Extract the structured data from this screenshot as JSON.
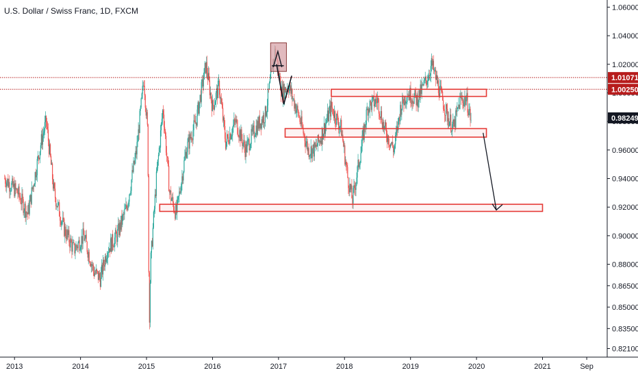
{
  "chart_data": {
    "type": "candlestick",
    "title": "U.S. Dollar / Swiss Franc, 1D, FXCM",
    "y_ticks": [
      0.821,
      0.835,
      0.85,
      0.865,
      0.88,
      0.9,
      0.92,
      0.94,
      0.96,
      0.98,
      1.0,
      1.02,
      1.04,
      1.06
    ],
    "y_tick_labels": [
      "0.82100",
      "0.83500",
      "0.85000",
      "0.86500",
      "0.88000",
      "0.90000",
      "0.92000",
      "0.94000",
      "0.96000",
      "0.98000",
      "1.00000",
      "1.02000",
      "1.04000",
      "1.06000"
    ],
    "x_ticks": [
      2013,
      2014,
      2015,
      2016,
      2017,
      2018,
      2019,
      2020,
      2021,
      2021.67
    ],
    "x_tick_labels": [
      "2013",
      "2014",
      "2015",
      "2016",
      "2017",
      "2018",
      "2019",
      "2020",
      "2021",
      "Sep"
    ],
    "price_path": [
      [
        2012.85,
        0.94
      ],
      [
        2013.05,
        0.93
      ],
      [
        2013.2,
        0.915
      ],
      [
        2013.4,
        0.965
      ],
      [
        2013.48,
        0.98
      ],
      [
        2013.6,
        0.93
      ],
      [
        2013.75,
        0.905
      ],
      [
        2013.9,
        0.89
      ],
      [
        2014.05,
        0.9
      ],
      [
        2014.2,
        0.875
      ],
      [
        2014.3,
        0.87
      ],
      [
        2014.4,
        0.89
      ],
      [
        2014.55,
        0.9
      ],
      [
        2014.7,
        0.92
      ],
      [
        2014.85,
        0.96
      ],
      [
        2014.96,
        1.01
      ],
      [
        2015.02,
        0.97
      ],
      [
        2015.04,
        0.835
      ],
      [
        2015.06,
        0.88
      ],
      [
        2015.15,
        0.94
      ],
      [
        2015.25,
        0.99
      ],
      [
        2015.35,
        0.93
      ],
      [
        2015.45,
        0.915
      ],
      [
        2015.6,
        0.96
      ],
      [
        2015.75,
        0.98
      ],
      [
        2015.9,
        1.02
      ],
      [
        2016.0,
        0.99
      ],
      [
        2016.1,
        1.005
      ],
      [
        2016.2,
        0.965
      ],
      [
        2016.35,
        0.98
      ],
      [
        2016.5,
        0.96
      ],
      [
        2016.65,
        0.975
      ],
      [
        2016.8,
        0.985
      ],
      [
        2016.95,
        1.03
      ],
      [
        2017.05,
        1.0
      ],
      [
        2017.15,
        1.005
      ],
      [
        2017.3,
        0.985
      ],
      [
        2017.45,
        0.96
      ],
      [
        2017.55,
        0.96
      ],
      [
        2017.65,
        0.97
      ],
      [
        2017.8,
        0.99
      ],
      [
        2017.95,
        0.975
      ],
      [
        2018.05,
        0.94
      ],
      [
        2018.12,
        0.925
      ],
      [
        2018.25,
        0.96
      ],
      [
        2018.35,
        0.99
      ],
      [
        2018.5,
        0.995
      ],
      [
        2018.6,
        0.975
      ],
      [
        2018.75,
        0.96
      ],
      [
        2018.85,
        0.99
      ],
      [
        2018.95,
        1.0
      ],
      [
        2019.1,
        0.995
      ],
      [
        2019.25,
        1.01
      ],
      [
        2019.32,
        1.02
      ],
      [
        2019.45,
        1.0
      ],
      [
        2019.55,
        0.985
      ],
      [
        2019.65,
        0.975
      ],
      [
        2019.75,
        0.995
      ],
      [
        2019.85,
        0.995
      ],
      [
        2019.92,
        0.98
      ]
    ],
    "price_tags": [
      {
        "value": 1.01071,
        "label": "1.01071",
        "color": "#b71c1c"
      },
      {
        "value": 1.0025,
        "label": "1.00250",
        "color": "#b71c1c"
      },
      {
        "value": 0.98249,
        "label": "0.98249",
        "color": "#131722"
      }
    ],
    "horizontal_lines": [
      1.01071,
      1.0025
    ],
    "zones": [
      {
        "x1": 2017.8,
        "x2": 2020.15,
        "y1": 1.0025,
        "y2": 0.9975
      },
      {
        "x1": 2017.1,
        "x2": 2020.15,
        "y1": 0.975,
        "y2": 0.969
      },
      {
        "x1": 2015.2,
        "x2": 2021.0,
        "y1": 0.922,
        "y2": 0.917
      }
    ],
    "top_box": {
      "x1": 2016.88,
      "x2": 2017.12,
      "y1": 1.035,
      "y2": 1.015
    },
    "arrow": {
      "x1": 2020.1,
      "y1": 0.972,
      "x2": 2020.3,
      "y2": 0.918
    },
    "ylim": [
      0.815,
      1.065
    ],
    "xlim": [
      2012.78,
      2021.98
    ],
    "colors": {
      "up": "#26a69a",
      "down": "#ef5350",
      "zone": "#e53935",
      "box_fill": "#d7a3a8",
      "box_stroke": "#8a3a3a"
    }
  }
}
